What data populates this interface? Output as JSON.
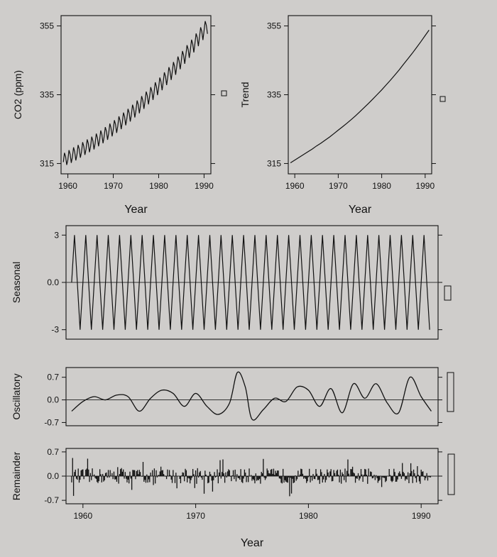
{
  "chart_data": [
    {
      "id": "co2",
      "type": "line",
      "ylabel": "CO2 (ppm)",
      "xlabel": "Year",
      "xlim": [
        1958.5,
        1991.5
      ],
      "ylim": [
        312,
        358
      ],
      "xticks": [
        1960,
        1970,
        1980,
        1990
      ],
      "yticks": [
        315,
        335,
        355
      ],
      "series": [
        {
          "x": [
            1959,
            1959.25,
            1959.5,
            1959.75,
            1960,
            1960.25,
            1960.5,
            1960.75,
            1961,
            1961.25,
            1961.5,
            1961.75,
            1962,
            1962.25,
            1962.5,
            1962.75,
            1963,
            1963.25,
            1963.5,
            1963.75,
            1964,
            1964.25,
            1964.5,
            1964.75,
            1965,
            1965.25,
            1965.5,
            1965.75,
            1966,
            1966.25,
            1966.5,
            1966.75,
            1967,
            1967.25,
            1967.5,
            1967.75,
            1968,
            1968.25,
            1968.5,
            1968.75,
            1969,
            1969.25,
            1969.5,
            1969.75,
            1970,
            1970.25,
            1970.5,
            1970.75,
            1971,
            1971.25,
            1971.5,
            1971.75,
            1972,
            1972.25,
            1972.5,
            1972.75,
            1973,
            1973.25,
            1973.5,
            1973.75,
            1974,
            1974.25,
            1974.5,
            1974.75,
            1975,
            1975.25,
            1975.5,
            1975.75,
            1976,
            1976.25,
            1976.5,
            1976.75,
            1977,
            1977.25,
            1977.5,
            1977.75,
            1978,
            1978.25,
            1978.5,
            1978.75,
            1979,
            1979.25,
            1979.5,
            1979.75,
            1980,
            1980.25,
            1980.5,
            1980.75,
            1981,
            1981.25,
            1981.5,
            1981.75,
            1982,
            1982.25,
            1982.5,
            1982.75,
            1983,
            1983.25,
            1983.5,
            1983.75,
            1984,
            1984.25,
            1984.5,
            1984.75,
            1985,
            1985.25,
            1985.5,
            1985.75,
            1986,
            1986.25,
            1986.5,
            1986.75,
            1987,
            1987.25,
            1987.5,
            1987.75,
            1988,
            1988.25,
            1988.5,
            1988.75,
            1989,
            1989.25,
            1989.5,
            1989.75,
            1990,
            1990.25,
            1990.5,
            1990.75
          ],
          "y": [
            315.4,
            318.1,
            317.0,
            314.6,
            316.1,
            318.9,
            317.7,
            315.2,
            316.9,
            319.7,
            318.4,
            315.9,
            317.6,
            320.4,
            319.2,
            316.7,
            318.4,
            321.2,
            320.0,
            317.5,
            319.2,
            322.0,
            320.8,
            318.3,
            320.0,
            322.8,
            321.6,
            319.1,
            320.9,
            323.7,
            322.5,
            320.0,
            321.8,
            324.6,
            323.4,
            320.9,
            322.8,
            325.6,
            324.4,
            321.9,
            323.8,
            326.6,
            325.4,
            322.9,
            324.8,
            327.6,
            326.4,
            323.9,
            325.9,
            328.7,
            327.5,
            325.0,
            327.0,
            329.8,
            328.6,
            326.1,
            328.1,
            330.9,
            329.7,
            327.2,
            329.3,
            332.1,
            330.9,
            328.4,
            330.5,
            333.3,
            332.1,
            329.6,
            331.8,
            334.6,
            333.4,
            330.9,
            333.1,
            335.9,
            334.7,
            332.2,
            334.4,
            337.2,
            336.0,
            333.5,
            335.8,
            338.6,
            337.4,
            334.9,
            337.2,
            340.0,
            338.8,
            336.3,
            338.7,
            341.5,
            340.3,
            337.8,
            340.2,
            343.0,
            341.8,
            339.3,
            341.7,
            344.5,
            343.3,
            340.8,
            343.3,
            346.1,
            344.9,
            342.4,
            344.9,
            347.7,
            346.5,
            344.0,
            346.6,
            349.4,
            348.2,
            345.7,
            348.2,
            351.0,
            349.8,
            347.3,
            350.0,
            352.8,
            351.6,
            349.1,
            351.8,
            354.6,
            353.4,
            350.9,
            353.6,
            356.4,
            355.2,
            352.7
          ]
        }
      ]
    },
    {
      "id": "trend",
      "type": "line",
      "ylabel": "Trend",
      "xlabel": "Year",
      "xlim": [
        1958.5,
        1991.5
      ],
      "ylim": [
        312,
        358
      ],
      "xticks": [
        1960,
        1970,
        1980,
        1990
      ],
      "yticks": [
        315,
        335,
        355
      ],
      "series": [
        {
          "x": [
            1959,
            1960,
            1961,
            1962,
            1963,
            1964,
            1965,
            1966,
            1967,
            1968,
            1969,
            1970,
            1971,
            1972,
            1973,
            1974,
            1975,
            1976,
            1977,
            1978,
            1979,
            1980,
            1981,
            1982,
            1983,
            1984,
            1985,
            1986,
            1987,
            1988,
            1989,
            1990,
            1990.9
          ],
          "y": [
            315.2,
            316.0,
            316.8,
            317.6,
            318.4,
            319.2,
            320.1,
            320.9,
            321.8,
            322.7,
            323.7,
            324.7,
            325.7,
            326.7,
            327.8,
            328.9,
            330.1,
            331.3,
            332.5,
            333.8,
            335.1,
            336.4,
            337.8,
            339.2,
            340.7,
            342.2,
            343.8,
            345.4,
            347.0,
            348.7,
            350.4,
            352.2,
            353.8
          ]
        }
      ]
    },
    {
      "id": "seasonal",
      "type": "line",
      "ylabel": "Seasonal",
      "xlim": [
        1958.5,
        1991.5
      ],
      "ylim": [
        -3.6,
        3.6
      ],
      "yticks": [
        3,
        0,
        -3
      ],
      "series": [
        {
          "x": [
            1959,
            1959.25,
            1959.5,
            1959.75,
            1960,
            1960.25,
            1960.5,
            1960.75,
            1961,
            1961.25,
            1961.5,
            1961.75,
            1962,
            1962.25,
            1962.5,
            1962.75,
            1963,
            1963.25,
            1963.5,
            1963.75,
            1964,
            1964.25,
            1964.5,
            1964.75,
            1965,
            1965.25,
            1965.5,
            1965.75,
            1966,
            1966.25,
            1966.5,
            1966.75,
            1967,
            1967.25,
            1967.5,
            1967.75,
            1968,
            1968.25,
            1968.5,
            1968.75,
            1969,
            1969.25,
            1969.5,
            1969.75,
            1970,
            1970.25,
            1970.5,
            1970.75,
            1971,
            1971.25,
            1971.5,
            1971.75,
            1972,
            1972.25,
            1972.5,
            1972.75,
            1973,
            1973.25,
            1973.5,
            1973.75,
            1974,
            1974.25,
            1974.5,
            1974.75,
            1975,
            1975.25,
            1975.5,
            1975.75,
            1976,
            1976.25,
            1976.5,
            1976.75,
            1977,
            1977.25,
            1977.5,
            1977.75,
            1978,
            1978.25,
            1978.5,
            1978.75,
            1979,
            1979.25,
            1979.5,
            1979.75,
            1980,
            1980.25,
            1980.5,
            1980.75,
            1981,
            1981.25,
            1981.5,
            1981.75,
            1982,
            1982.25,
            1982.5,
            1982.75,
            1983,
            1983.25,
            1983.5,
            1983.75,
            1984,
            1984.25,
            1984.5,
            1984.75,
            1985,
            1985.25,
            1985.5,
            1985.75,
            1986,
            1986.25,
            1986.5,
            1986.75,
            1987,
            1987.25,
            1987.5,
            1987.75,
            1988,
            1988.25,
            1988.5,
            1988.75,
            1989,
            1989.25,
            1989.5,
            1989.75,
            1990,
            1990.25,
            1990.5,
            1990.75
          ],
          "y": [
            0,
            3,
            0,
            -3,
            0,
            3,
            0,
            -3,
            0,
            3,
            0,
            -3,
            0,
            3,
            0,
            -3,
            0,
            3,
            0,
            -3,
            0,
            3,
            0,
            -3,
            0,
            3,
            0,
            -3,
            0,
            3,
            0,
            -3,
            0,
            3,
            0,
            -3,
            0,
            3,
            0,
            -3,
            0,
            3,
            0,
            -3,
            0,
            3,
            0,
            -3,
            0,
            3,
            0,
            -3,
            0,
            3,
            0,
            -3,
            0,
            3,
            0,
            -3,
            0,
            3,
            0,
            -3,
            0,
            3,
            0,
            -3,
            0,
            3,
            0,
            -3,
            0,
            3,
            0,
            -3,
            0,
            3,
            0,
            -3,
            0,
            3,
            0,
            -3,
            0,
            3,
            0,
            -3,
            0,
            3,
            0,
            -3,
            0,
            3,
            0,
            -3,
            0,
            3,
            0,
            -3,
            0,
            3,
            0,
            -3,
            0,
            3,
            0,
            -3,
            0,
            3,
            0,
            -3,
            0,
            3,
            0,
            -3,
            0,
            3,
            0,
            -3,
            0,
            3,
            0,
            -3,
            0,
            3,
            0,
            -3
          ]
        }
      ]
    },
    {
      "id": "oscillatory",
      "type": "line",
      "ylabel": "Oscillatory",
      "xlim": [
        1958.5,
        1991.5
      ],
      "ylim": [
        -0.8,
        1.0
      ],
      "yticks": [
        0.7,
        0.0,
        -0.7
      ],
      "series": [
        {
          "x": [
            1959,
            1960,
            1961,
            1962,
            1963,
            1964,
            1965,
            1966,
            1967,
            1968,
            1969,
            1970,
            1971,
            1972,
            1973,
            1973.7,
            1974.4,
            1975,
            1976,
            1977,
            1978,
            1979,
            1980,
            1981,
            1982,
            1983,
            1984,
            1985,
            1986,
            1987,
            1988,
            1989,
            1990,
            1990.9
          ],
          "y": [
            -0.35,
            -0.05,
            0.1,
            0.0,
            0.15,
            0.1,
            -0.35,
            0.05,
            0.3,
            0.2,
            -0.2,
            0.2,
            -0.2,
            -0.45,
            -0.1,
            0.85,
            0.4,
            -0.6,
            -0.3,
            0.05,
            -0.05,
            0.4,
            0.3,
            -0.2,
            0.35,
            -0.4,
            0.5,
            0.05,
            0.5,
            -0.1,
            -0.4,
            0.7,
            0.1,
            -0.35
          ]
        }
      ]
    },
    {
      "id": "remainder",
      "type": "bar",
      "ylabel": "Remainder",
      "xlabel": "Year",
      "xlim": [
        1958.5,
        1991.5
      ],
      "ylim": [
        -0.8,
        0.8
      ],
      "xticks": [
        1960,
        1970,
        1980,
        1990
      ],
      "yticks": [
        0.7,
        0.0,
        -0.7
      ]
    }
  ]
}
